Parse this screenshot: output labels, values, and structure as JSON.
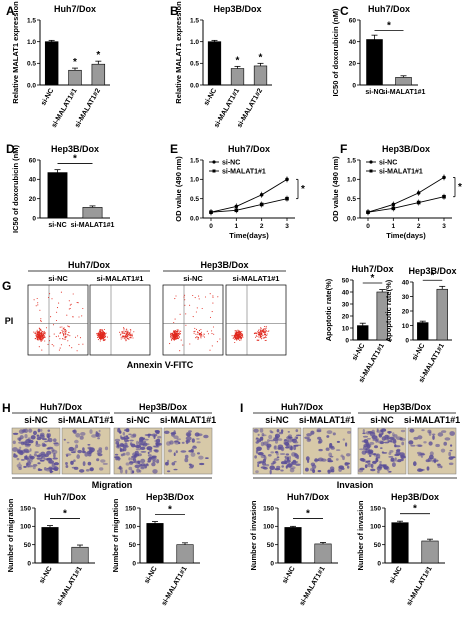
{
  "colors": {
    "black_bar": "#000000",
    "gray_bar": "#9a9a9a",
    "light_bar": "#cfcfcf",
    "line_black": "#000000",
    "scatter_red": "#e0281e",
    "stain_purple": "#5b4f98",
    "stain_bg": "#d7c9a8"
  },
  "chart_data": [
    {
      "panel": "A",
      "type": "bar",
      "title": "Huh7/Dox",
      "ylabel": "Relative MALAT1 expression",
      "categories": [
        "si-NC",
        "si-MALAT1#1",
        "si-MALAT1#2"
      ],
      "values": [
        1.0,
        0.34,
        0.48
      ],
      "errors": [
        0.03,
        0.05,
        0.07
      ],
      "ylim": [
        0,
        1.5
      ],
      "yticks": [
        "0.0",
        "0.5",
        "1.0",
        "1.5"
      ],
      "yticks_v": [
        0,
        0.5,
        1.0,
        1.5
      ],
      "sig": [
        "",
        "*",
        "*"
      ]
    },
    {
      "panel": "B",
      "type": "bar",
      "title": "Hep3B/Dox",
      "ylabel": "Relative MALAT1 expression",
      "categories": [
        "si-NC",
        "si-MALAT1#1",
        "si-MALAT1#2"
      ],
      "values": [
        1.0,
        0.38,
        0.44
      ],
      "errors": [
        0.03,
        0.05,
        0.06
      ],
      "ylim": [
        0,
        1.5
      ],
      "yticks": [
        "0.0",
        "0.5",
        "1.0",
        "1.5"
      ],
      "yticks_v": [
        0,
        0.5,
        1.0,
        1.5
      ],
      "sig": [
        "",
        "*",
        "*"
      ]
    },
    {
      "panel": "C",
      "type": "bar",
      "title": "Huh7/Dox",
      "ylabel": "IC50 of doxorubicin (nM)",
      "categories": [
        "si-NC",
        "si-MALAT1#1"
      ],
      "values": [
        42,
        7
      ],
      "errors": [
        4,
        1.5
      ],
      "ylim": [
        0,
        60
      ],
      "yticks": [
        "0",
        "20",
        "40",
        "60"
      ],
      "yticks_v": [
        0,
        20,
        40,
        60
      ],
      "bracket": "*"
    },
    {
      "panel": "D",
      "type": "bar",
      "title": "Hep3B/Dox",
      "ylabel": "IC50 of doxorubicin (nM)",
      "categories": [
        "si-NC",
        "si-MALAT1#1"
      ],
      "values": [
        47,
        11
      ],
      "errors": [
        3,
        1.5
      ],
      "ylim": [
        0,
        60
      ],
      "yticks": [
        "0",
        "20",
        "40",
        "60"
      ],
      "yticks_v": [
        0,
        20,
        40,
        60
      ],
      "bracket": "*"
    },
    {
      "panel": "E",
      "type": "line",
      "title": "Huh7/Dox",
      "xlabel": "Time(days)",
      "ylabel": "OD value (490 nm)",
      "x": [
        0,
        1,
        2,
        3
      ],
      "ylim": [
        0,
        1.5
      ],
      "yticks": [
        "0.0",
        "0.5",
        "1.0",
        "1.5"
      ],
      "yticks_v": [
        0,
        0.5,
        1.0,
        1.5
      ],
      "series": [
        {
          "name": "si-NC",
          "values": [
            0.15,
            0.3,
            0.6,
            1.0
          ]
        },
        {
          "name": "si-MALAT1#1",
          "values": [
            0.15,
            0.2,
            0.35,
            0.5
          ]
        }
      ],
      "sig": "*"
    },
    {
      "panel": "F",
      "type": "line",
      "title": "Hep3B/Dox",
      "xlabel": "Time(days)",
      "ylabel": "OD value (490 nm)",
      "x": [
        0,
        1,
        2,
        3
      ],
      "ylim": [
        0,
        1.5
      ],
      "yticks": [
        "0.0",
        "0.5",
        "1.0",
        "1.5"
      ],
      "yticks_v": [
        0,
        0.5,
        1.0,
        1.5
      ],
      "series": [
        {
          "name": "si-NC",
          "values": [
            0.15,
            0.35,
            0.65,
            1.05
          ]
        },
        {
          "name": "si-MALAT1#1",
          "values": [
            0.15,
            0.25,
            0.4,
            0.55
          ]
        }
      ],
      "sig": "*"
    },
    {
      "panel": "G1",
      "type": "bar",
      "title": "Huh7/Dox",
      "ylabel": "Apoptotic rate(%)",
      "categories": [
        "si-NC",
        "si-MALAT1#1"
      ],
      "values": [
        12,
        40
      ],
      "errors": [
        2,
        2
      ],
      "ylim": [
        0,
        50
      ],
      "yticks": [
        "0",
        "10",
        "20",
        "30",
        "40",
        "50"
      ],
      "yticks_v": [
        0,
        10,
        20,
        30,
        40,
        50
      ],
      "bracket": "*"
    },
    {
      "panel": "G2",
      "type": "bar",
      "title": "Hep3B/Dox",
      "ylabel": "Apoptotic rate(%)",
      "categories": [
        "si-NC",
        "si-MALAT1#1"
      ],
      "values": [
        12,
        35
      ],
      "errors": [
        1,
        2
      ],
      "ylim": [
        0,
        40
      ],
      "yticks": [
        "0",
        "10",
        "20",
        "30",
        "40"
      ],
      "yticks_v": [
        0,
        10,
        20,
        30,
        40
      ],
      "bracket": "*"
    },
    {
      "panel": "H1",
      "type": "bar",
      "title": "Huh7/Dox",
      "ylabel": "Number of migration",
      "categories": [
        "si-NC",
        "si-MALAT1#1"
      ],
      "values": [
        97,
        43
      ],
      "errors": [
        5,
        6
      ],
      "ylim": [
        0,
        150
      ],
      "yticks": [
        "0",
        "50",
        "100",
        "150"
      ],
      "yticks_v": [
        0,
        50,
        100,
        150
      ],
      "bracket": "*"
    },
    {
      "panel": "H2",
      "type": "bar",
      "title": "Hep3B/Dox",
      "ylabel": "Number of migration",
      "categories": [
        "si-NC",
        "si-MALAT1#1"
      ],
      "values": [
        108,
        50
      ],
      "errors": [
        5,
        5
      ],
      "ylim": [
        0,
        150
      ],
      "yticks": [
        "0",
        "50",
        "100",
        "150"
      ],
      "yticks_v": [
        0,
        50,
        100,
        150
      ],
      "bracket": "*"
    },
    {
      "panel": "I1",
      "type": "bar",
      "title": "Huh7/Dox",
      "ylabel": "Number of invasion",
      "categories": [
        "si-NC",
        "si-MALAT1#1"
      ],
      "values": [
        97,
        52
      ],
      "errors": [
        3,
        4
      ],
      "ylim": [
        0,
        150
      ],
      "yticks": [
        "0",
        "50",
        "100",
        "150"
      ],
      "yticks_v": [
        0,
        50,
        100,
        150
      ],
      "bracket": "*"
    },
    {
      "panel": "I2",
      "type": "bar",
      "title": "Hep3B/Dox",
      "ylabel": "Number of invasion",
      "categories": [
        "si-NC",
        "si-MALAT1#1"
      ],
      "values": [
        110,
        60
      ],
      "errors": [
        4,
        5
      ],
      "ylim": [
        0,
        150
      ],
      "yticks": [
        "0",
        "50",
        "100",
        "150"
      ],
      "yticks_v": [
        0,
        50,
        100,
        150
      ],
      "bracket": "*"
    }
  ],
  "flow": {
    "panel": "G",
    "xlabel": "Annexin V-FITC",
    "ylabel": "PI",
    "groups": [
      {
        "title": "Huh7/Dox",
        "conds": [
          "si-NC",
          "si-MALAT1#1"
        ]
      },
      {
        "title": "Hep3B/Dox",
        "conds": [
          "si-NC",
          "si-MALAT1#1"
        ]
      }
    ]
  },
  "transwell": [
    {
      "panel": "H",
      "section": "Migration",
      "groups": [
        {
          "title": "Huh7/Dox",
          "conds": [
            "si-NC",
            "si-MALAT1#1"
          ]
        },
        {
          "title": "Hep3B/Dox",
          "conds": [
            "si-NC",
            "si-MALAT1#1"
          ]
        }
      ],
      "density": [
        0.75,
        0.35,
        0.8,
        0.3
      ]
    },
    {
      "panel": "I",
      "section": "Invasion",
      "groups": [
        {
          "title": "Huh7/Dox",
          "conds": [
            "si-NC",
            "si-MALAT1#1"
          ]
        },
        {
          "title": "Hep3B/Dox",
          "conds": [
            "si-NC",
            "si-MALAT1#1"
          ]
        }
      ],
      "density": [
        0.75,
        0.35,
        0.8,
        0.3
      ]
    }
  ]
}
